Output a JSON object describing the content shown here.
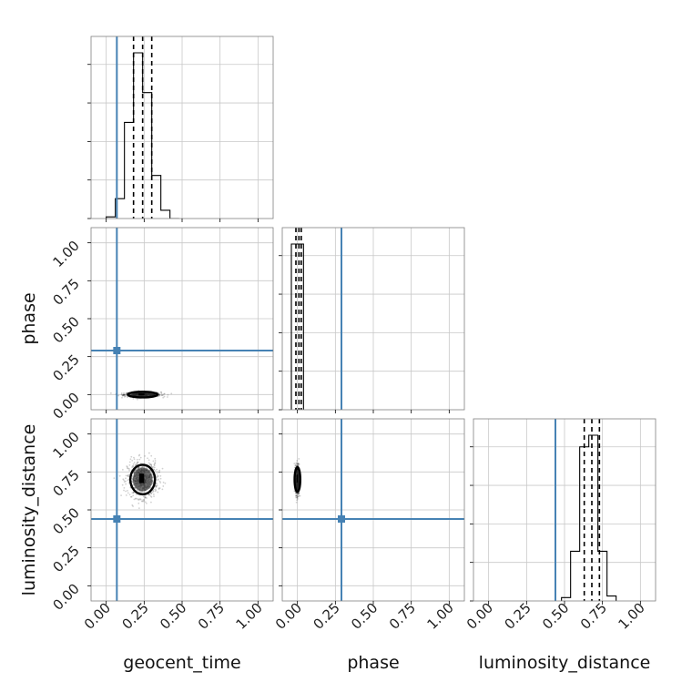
{
  "chart_data": {
    "type": "corner",
    "parameters": [
      "geocent_time",
      "phase",
      "luminosity_distance"
    ],
    "axis_range": [
      -0.1,
      1.1
    ],
    "ticks": [
      0.0,
      0.25,
      0.5,
      0.75,
      1.0
    ],
    "tick_labels": [
      "0.00",
      "0.25",
      "0.50",
      "0.75",
      "1.00"
    ],
    "grid": true,
    "truth_color": "#4682b4",
    "truths": {
      "geocent_time": 0.07,
      "phase": 0.29,
      "luminosity_distance": 0.44
    },
    "histograms": [
      {
        "parameter": "geocent_time",
        "bin_edges": [
          0.0,
          0.06,
          0.12,
          0.18,
          0.24,
          0.3,
          0.36,
          0.42,
          0.48
        ],
        "counts": [
          0.01,
          0.12,
          0.58,
          1.0,
          0.76,
          0.26,
          0.05,
          0.0
        ],
        "quantiles": [
          0.18,
          0.24,
          0.3
        ]
      },
      {
        "parameter": "phase",
        "bin_edges": [
          -0.04,
          0.0,
          0.04
        ],
        "counts": [
          1.0,
          1.0
        ],
        "quantiles": [
          -0.01,
          0.01,
          0.025
        ]
      },
      {
        "parameter": "luminosity_distance",
        "bin_edges": [
          0.48,
          0.54,
          0.6,
          0.66,
          0.72,
          0.78,
          0.84
        ],
        "counts": [
          0.02,
          0.3,
          0.93,
          1.0,
          0.3,
          0.03
        ],
        "quantiles": [
          0.63,
          0.68,
          0.73
        ]
      }
    ],
    "scatter_2d": [
      {
        "x": "geocent_time",
        "y": "phase",
        "center": [
          0.24,
          0.0
        ],
        "spread": [
          0.06,
          0.008
        ]
      },
      {
        "x": "geocent_time",
        "y": "luminosity_distance",
        "center": [
          0.24,
          0.7
        ],
        "spread": [
          0.05,
          0.06
        ]
      },
      {
        "x": "phase",
        "y": "luminosity_distance",
        "center": [
          0.0,
          0.7
        ],
        "spread": [
          0.006,
          0.05
        ]
      }
    ]
  }
}
